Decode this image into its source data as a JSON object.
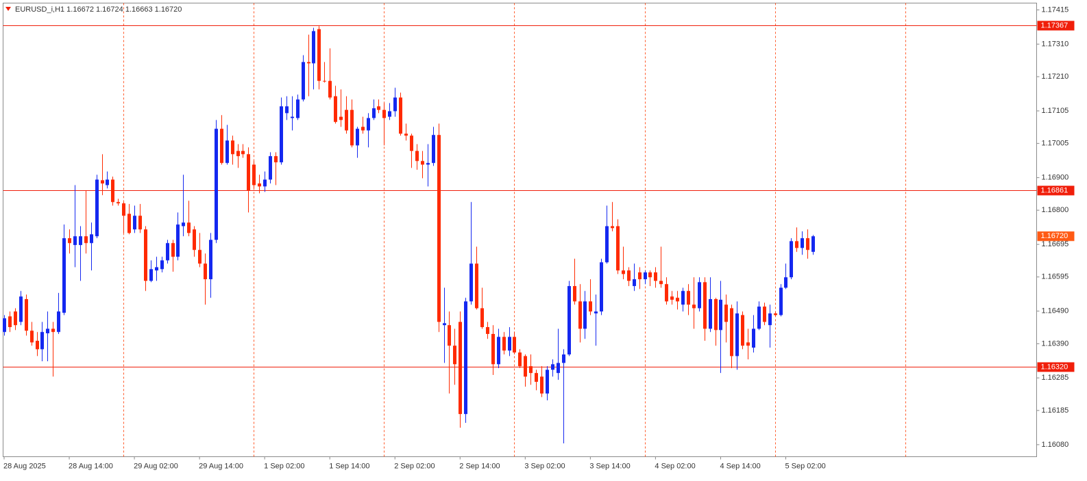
{
  "chart_data": {
    "type": "candlestick",
    "title": "EURUSD_i,H1  1.16672 1.16724 1.16663 1.16720",
    "categories": [
      "28 Aug 2025",
      null,
      null,
      null,
      null,
      null,
      null,
      null,
      null,
      null,
      null,
      null,
      "28 Aug 14:00",
      null,
      null,
      null,
      null,
      null,
      null,
      null,
      null,
      null,
      null,
      null,
      "29 Aug 02:00",
      null,
      null,
      null,
      null,
      null,
      null,
      null,
      null,
      null,
      null,
      null,
      "29 Aug 14:00",
      null,
      null,
      null,
      null,
      null,
      null,
      null,
      null,
      null,
      null,
      null,
      "1 Sep 02:00",
      null,
      null,
      null,
      null,
      null,
      null,
      null,
      null,
      null,
      null,
      null,
      "1 Sep 14:00",
      null,
      null,
      null,
      null,
      null,
      null,
      null,
      null,
      null,
      null,
      null,
      "2 Sep 02:00",
      null,
      null,
      null,
      null,
      null,
      null,
      null,
      null,
      null,
      null,
      null,
      "2 Sep 14:00",
      null,
      null,
      null,
      null,
      null,
      null,
      null,
      null,
      null,
      null,
      null,
      "3 Sep 02:00",
      null,
      null,
      null,
      null,
      null,
      null,
      null,
      null,
      null,
      null,
      null,
      "3 Sep 14:00",
      null,
      null,
      null,
      null,
      null,
      null,
      null,
      null,
      null,
      null,
      null,
      "4 Sep 02:00",
      null,
      null,
      null,
      null,
      null,
      null,
      null,
      null,
      null,
      null,
      null,
      "4 Sep 14:00",
      null,
      null,
      null,
      null,
      null,
      null,
      null,
      null,
      null,
      null,
      null,
      "5 Sep 02:00",
      null,
      null,
      null,
      null,
      null
    ],
    "open": [
      1.16426,
      1.16474,
      1.16489,
      1.16457,
      1.16527,
      1.1643,
      1.16399,
      1.16373,
      1.16422,
      1.16436,
      1.16426,
      1.16485,
      1.16714,
      1.16693,
      1.16693,
      1.1672,
      1.16699,
      1.1672,
      1.16892,
      1.16877,
      1.16894,
      1.16825,
      1.16821,
      1.16789,
      1.16741,
      1.16783,
      1.16741,
      1.16583,
      1.16615,
      1.16619,
      1.16646,
      1.16699,
      1.16657,
      1.16751,
      1.16762,
      1.16741,
      1.16678,
      1.16636,
      1.16588,
      1.16709,
      1.1705,
      1.16945,
      1.17014,
      1.16982,
      1.16982,
      1.16972,
      1.1694,
      1.16882,
      1.16873,
      1.16894,
      1.16966,
      1.16947,
      1.17098,
      1.17083,
      1.17083,
      1.1714,
      1.17255,
      1.17251,
      1.17356,
      1.17197,
      1.17197,
      1.1715,
      1.17087,
      1.17108,
      1.17108,
      1.16999,
      1.17056,
      1.17045,
      1.17083,
      1.17119,
      1.17108,
      1.17087,
      1.17104,
      1.17146,
      1.17035,
      1.17029,
      1.16982,
      1.16951,
      1.1694,
      1.16945,
      1.17031,
      1.16447,
      1.16447,
      1.16384,
      1.16457,
      1.16174,
      1.1652,
      1.16636,
      1.16499,
      1.16441,
      1.1642,
      1.16327,
      1.16411,
      1.16369,
      1.16411,
      1.16363,
      1.16352,
      1.16321,
      1.163,
      1.16289,
      1.16237,
      1.1631,
      1.163,
      1.16331,
      1.16357,
      1.16567,
      1.1652,
      1.16436,
      1.1652,
      1.16483,
      1.16489,
      1.1664,
      1.16751,
      1.16751,
      1.16615,
      1.16615,
      1.16567,
      1.16609,
      1.16588,
      1.16609,
      1.16609,
      1.16583,
      1.16573,
      1.16535,
      1.16531,
      1.1651,
      1.16552,
      1.1651,
      1.16499,
      1.16579,
      1.16436,
      1.16527,
      1.16432,
      1.1651,
      1.16499,
      1.16352,
      1.16478,
      1.16394,
      1.16378,
      1.16436,
      1.16504,
      1.16447,
      1.16483,
      1.16478,
      1.16562,
      1.16594,
      1.16705,
      1.16684,
      1.16714,
      1.16672
    ],
    "high": [
      1.16478,
      1.16489,
      1.16499,
      1.16552,
      1.16541,
      1.16457,
      1.16426,
      1.16457,
      1.16489,
      1.16457,
      1.16546,
      1.16756,
      1.16741,
      1.16877,
      1.16751,
      1.16861,
      1.16762,
      1.16909,
      1.16972,
      1.16919,
      1.16903,
      1.16835,
      1.16825,
      1.16819,
      1.16814,
      1.16819,
      1.16751,
      1.16646,
      1.16657,
      1.16657,
      1.16709,
      1.16709,
      1.16793,
      1.16909,
      1.16829,
      1.16751,
      1.1673,
      1.16667,
      1.1673,
      1.17077,
      1.17092,
      1.17062,
      1.17029,
      1.17003,
      1.17003,
      1.16993,
      1.16951,
      1.16909,
      1.16919,
      1.16978,
      1.16978,
      1.17146,
      1.1715,
      1.1715,
      1.17155,
      1.17276,
      1.17339,
      1.1736,
      1.17365,
      1.17255,
      1.17297,
      1.17182,
      1.17171,
      1.1715,
      1.1714,
      1.17056,
      1.17087,
      1.17098,
      1.1714,
      1.1714,
      1.17129,
      1.17129,
      1.17176,
      1.17161,
      1.17066,
      1.17035,
      1.17003,
      1.16982,
      1.17003,
      1.17056,
      1.17066,
      1.16562,
      1.16489,
      1.16436,
      1.16489,
      1.16531,
      1.16825,
      1.16688,
      1.16562,
      1.16457,
      1.16447,
      1.16436,
      1.16426,
      1.16441,
      1.16426,
      1.16373,
      1.16357,
      1.16357,
      1.1631,
      1.16321,
      1.16321,
      1.16342,
      1.16436,
      1.16373,
      1.16583,
      1.16651,
      1.16573,
      1.16552,
      1.16588,
      1.16541,
      1.16651,
      1.16814,
      1.16825,
      1.16772,
      1.16688,
      1.16625,
      1.16636,
      1.16625,
      1.16615,
      1.16615,
      1.16625,
      1.16688,
      1.16594,
      1.16552,
      1.16552,
      1.16562,
      1.16573,
      1.16594,
      1.16594,
      1.16594,
      1.16594,
      1.16531,
      1.16583,
      1.16541,
      1.1651,
      1.1652,
      1.16489,
      1.16436,
      1.16478,
      1.1652,
      1.16516,
      1.1651,
      1.16489,
      1.16573,
      1.16636,
      1.16714,
      1.16747,
      1.16735,
      1.16741,
      1.16724
    ],
    "low": [
      1.16415,
      1.16426,
      1.16432,
      1.16447,
      1.16415,
      1.16384,
      1.16352,
      1.16336,
      1.16336,
      1.16289,
      1.1642,
      1.16478,
      1.16667,
      1.16625,
      1.16583,
      1.16667,
      1.16615,
      1.16714,
      1.16846,
      1.16867,
      1.16814,
      1.16814,
      1.1673,
      1.16726,
      1.1673,
      1.1673,
      1.16552,
      1.16579,
      1.16583,
      1.16609,
      1.16636,
      1.16611,
      1.16646,
      1.1672,
      1.1672,
      1.16657,
      1.16625,
      1.1651,
      1.16531,
      1.16699,
      1.1694,
      1.1694,
      1.1694,
      1.1693,
      1.16961,
      1.16793,
      1.16867,
      1.16852,
      1.16856,
      1.16882,
      1.16877,
      1.1694,
      1.17077,
      1.17045,
      1.17077,
      1.17134,
      1.1715,
      1.17171,
      1.17171,
      1.17192,
      1.1714,
      1.17066,
      1.17056,
      1.17035,
      1.16993,
      1.16961,
      1.17035,
      1.16993,
      1.17077,
      1.17098,
      1.16999,
      1.17077,
      1.17087,
      1.17029,
      1.17014,
      1.1693,
      1.16924,
      1.16898,
      1.16873,
      1.16936,
      1.16426,
      1.16331,
      1.16237,
      1.16264,
      1.16132,
      1.16147,
      1.1651,
      1.16495,
      1.16436,
      1.16405,
      1.16294,
      1.16315,
      1.16357,
      1.16352,
      1.16357,
      1.16315,
      1.16258,
      1.16264,
      1.16247,
      1.16226,
      1.16216,
      1.16289,
      1.16279,
      1.16084,
      1.16352,
      1.1651,
      1.16394,
      1.16405,
      1.16478,
      1.16384,
      1.16478,
      1.16636,
      1.16735,
      1.16604,
      1.16588,
      1.16567,
      1.16552,
      1.16558,
      1.16573,
      1.16567,
      1.16562,
      1.16562,
      1.1651,
      1.1651,
      1.16495,
      1.16489,
      1.16478,
      1.16436,
      1.16489,
      1.16399,
      1.16426,
      1.16384,
      1.163,
      1.16394,
      1.16315,
      1.1631,
      1.16373,
      1.16342,
      1.16363,
      1.16432,
      1.16447,
      1.16378,
      1.16474,
      1.16474,
      1.16558,
      1.16588,
      1.16672,
      1.16663,
      1.16651,
      1.16663
    ],
    "close": [
      1.16468,
      1.16441,
      1.16447,
      1.16535,
      1.1643,
      1.16394,
      1.16373,
      1.16426,
      1.16436,
      1.16426,
      1.16489,
      1.16714,
      1.16699,
      1.1672,
      1.1672,
      1.16699,
      1.16726,
      1.16894,
      1.16882,
      1.16894,
      1.16825,
      1.16821,
      1.16783,
      1.1673,
      1.16783,
      1.16741,
      1.16583,
      1.16619,
      1.16625,
      1.16646,
      1.16699,
      1.16657,
      1.16756,
      1.16762,
      1.1673,
      1.16678,
      1.16636,
      1.16588,
      1.16709,
      1.1705,
      1.16945,
      1.17014,
      1.16972,
      1.16966,
      1.16972,
      1.16861,
      1.16877,
      1.16873,
      1.16894,
      1.16966,
      1.16947,
      1.17119,
      1.17119,
      1.17087,
      1.1714,
      1.17255,
      1.17251,
      1.1735,
      1.17197,
      1.17195,
      1.17146,
      1.17071,
      1.17077,
      1.17045,
      1.16999,
      1.1705,
      1.17045,
      1.17083,
      1.17113,
      1.17108,
      1.17083,
      1.17104,
      1.17146,
      1.17035,
      1.17029,
      1.16982,
      1.16951,
      1.1694,
      1.16945,
      1.17031,
      1.16457,
      1.16453,
      1.16384,
      1.16327,
      1.16174,
      1.1652,
      1.16636,
      1.16499,
      1.16441,
      1.1642,
      1.16327,
      1.16411,
      1.16369,
      1.16411,
      1.16363,
      1.16321,
      1.16289,
      1.163,
      1.16273,
      1.16237,
      1.1631,
      1.16327,
      1.16331,
      1.16357,
      1.16567,
      1.1652,
      1.16436,
      1.1652,
      1.16489,
      1.16489,
      1.1664,
      1.16751,
      1.16745,
      1.16615,
      1.16604,
      1.16583,
      1.16588,
      1.16588,
      1.16609,
      1.16594,
      1.16583,
      1.16573,
      1.1652,
      1.16525,
      1.1652,
      1.16552,
      1.1651,
      1.16499,
      1.16579,
      1.16436,
      1.16527,
      1.16432,
      1.16525,
      1.16457,
      1.16352,
      1.16483,
      1.16384,
      1.16384,
      1.16436,
      1.16504,
      1.16457,
      1.16483,
      1.16478,
      1.16562,
      1.16594,
      1.16705,
      1.16684,
      1.16714,
      1.16678,
      1.1672
    ],
    "up_color": "#1428f0",
    "down_color": "#ff2a00",
    "ylim": [
      1.16043,
      1.17436
    ],
    "yticks": [
      {
        "value": 1.17415,
        "label": "1.17415"
      },
      {
        "value": 1.1731,
        "label": "1.17310"
      },
      {
        "value": 1.1721,
        "label": "1.17210"
      },
      {
        "value": 1.17105,
        "label": "1.17105"
      },
      {
        "value": 1.17005,
        "label": "1.17005"
      },
      {
        "value": 1.169,
        "label": "1.16900"
      },
      {
        "value": 1.168,
        "label": "1.16800"
      },
      {
        "value": 1.16695,
        "label": "1.16695"
      },
      {
        "value": 1.16595,
        "label": "1.16595"
      },
      {
        "value": 1.1649,
        "label": "1.16490"
      },
      {
        "value": 1.1639,
        "label": "1.16390"
      },
      {
        "value": 1.16285,
        "label": "1.16285"
      },
      {
        "value": 1.16185,
        "label": "1.16185"
      },
      {
        "value": 1.1608,
        "label": "1.16080"
      }
    ],
    "hlines": [
      {
        "value": 1.17367,
        "label": "1.17367"
      },
      {
        "value": 1.16861,
        "label": "1.16861"
      },
      {
        "value": 1.1632,
        "label": "1.16320"
      }
    ],
    "hline_color": "#f01e0a",
    "price_line": {
      "value": 1.1672,
      "label": "1.16720",
      "color": "#ff5a14"
    },
    "separators": [
      22,
      46,
      70,
      94,
      118,
      142,
      166
    ],
    "separator_color": "#ff5a2a"
  }
}
